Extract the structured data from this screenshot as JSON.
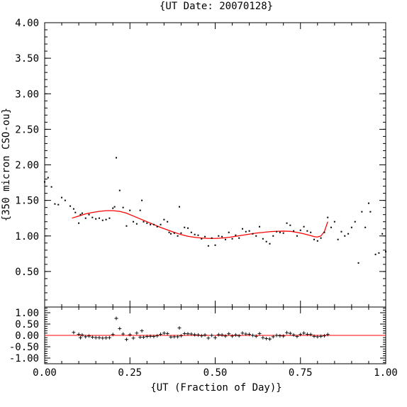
{
  "chart_data": [
    {
      "type": "scatter",
      "title": "{UT Date: 20070128}",
      "xlabel": "",
      "ylabel": "{350 micron CSO-ou}",
      "xlim": [
        0.0,
        1.0
      ],
      "ylim": [
        0.0,
        4.0
      ],
      "yticks": [
        "4.00",
        "3.50",
        "3.00",
        "2.50",
        "2.00",
        "1.50",
        "1.00",
        "0.50"
      ],
      "yticks_values": [
        4.0,
        3.5,
        3.0,
        2.5,
        2.0,
        1.5,
        1.0,
        0.5
      ],
      "series": [
        {
          "points": [
            [
              0.0,
              1.76
            ],
            [
              0.01,
              1.82
            ],
            [
              0.02,
              1.69
            ],
            [
              0.03,
              1.45
            ],
            [
              0.04,
              1.44
            ],
            [
              0.05,
              1.54
            ],
            [
              0.06,
              1.5
            ],
            [
              0.075,
              1.42
            ],
            [
              0.085,
              1.38
            ],
            [
              0.09,
              1.33
            ],
            [
              0.1,
              1.18
            ],
            [
              0.105,
              1.3
            ],
            [
              0.11,
              1.32
            ],
            [
              0.12,
              1.25
            ],
            [
              0.13,
              1.3
            ],
            [
              0.14,
              1.26
            ],
            [
              0.15,
              1.24
            ],
            [
              0.16,
              1.25
            ],
            [
              0.17,
              1.22
            ],
            [
              0.18,
              1.23
            ],
            [
              0.19,
              1.25
            ],
            [
              0.2,
              1.39
            ],
            [
              0.205,
              1.41
            ],
            [
              0.21,
              2.1
            ],
            [
              0.22,
              1.64
            ],
            [
              0.23,
              1.4
            ],
            [
              0.24,
              1.14
            ],
            [
              0.25,
              1.36
            ],
            [
              0.26,
              1.2
            ],
            [
              0.27,
              1.17
            ],
            [
              0.28,
              1.36
            ],
            [
              0.285,
              1.5
            ],
            [
              0.29,
              1.2
            ],
            [
              0.3,
              1.18
            ],
            [
              0.31,
              1.16
            ],
            [
              0.32,
              1.16
            ],
            [
              0.33,
              1.13
            ],
            [
              0.34,
              1.16
            ],
            [
              0.35,
              1.23
            ],
            [
              0.36,
              1.2
            ],
            [
              0.365,
              1.05
            ],
            [
              0.37,
              1.03
            ],
            [
              0.38,
              1.04
            ],
            [
              0.39,
              1.0
            ],
            [
              0.395,
              1.41
            ],
            [
              0.4,
              1.04
            ],
            [
              0.41,
              1.12
            ],
            [
              0.42,
              1.11
            ],
            [
              0.43,
              1.05
            ],
            [
              0.44,
              1.02
            ],
            [
              0.45,
              1.01
            ],
            [
              0.46,
              0.96
            ],
            [
              0.47,
              0.99
            ],
            [
              0.48,
              0.86
            ],
            [
              0.49,
              0.97
            ],
            [
              0.5,
              0.87
            ],
            [
              0.51,
              1.0
            ],
            [
              0.52,
              0.99
            ],
            [
              0.53,
              0.95
            ],
            [
              0.54,
              1.05
            ],
            [
              0.55,
              0.96
            ],
            [
              0.56,
              1.01
            ],
            [
              0.57,
              0.97
            ],
            [
              0.58,
              1.1
            ],
            [
              0.59,
              1.06
            ],
            [
              0.6,
              1.07
            ],
            [
              0.61,
              1.03
            ],
            [
              0.62,
              1.0
            ],
            [
              0.63,
              1.13
            ],
            [
              0.64,
              0.96
            ],
            [
              0.65,
              0.92
            ],
            [
              0.66,
              0.89
            ],
            [
              0.67,
              1.0
            ],
            [
              0.68,
              1.06
            ],
            [
              0.69,
              1.05
            ],
            [
              0.7,
              1.04
            ],
            [
              0.71,
              1.18
            ],
            [
              0.72,
              1.15
            ],
            [
              0.73,
              1.07
            ],
            [
              0.74,
              1.0
            ],
            [
              0.75,
              1.08
            ],
            [
              0.76,
              1.13
            ],
            [
              0.77,
              1.07
            ],
            [
              0.78,
              1.05
            ],
            [
              0.79,
              0.95
            ],
            [
              0.8,
              0.93
            ],
            [
              0.81,
              0.97
            ],
            [
              0.82,
              1.05
            ],
            [
              0.83,
              1.26
            ],
            [
              0.84,
              1.12
            ],
            [
              0.85,
              1.2
            ],
            [
              0.86,
              0.95
            ],
            [
              0.87,
              1.06
            ],
            [
              0.88,
              1.0
            ],
            [
              0.89,
              1.03
            ],
            [
              0.9,
              1.12
            ],
            [
              0.91,
              1.2
            ],
            [
              0.92,
              0.62
            ],
            [
              0.93,
              1.34
            ],
            [
              0.94,
              1.12
            ],
            [
              0.95,
              1.46
            ],
            [
              0.955,
              1.34
            ],
            [
              0.97,
              0.74
            ],
            [
              0.98,
              0.76
            ],
            [
              0.99,
              1.03
            ],
            [
              1.0,
              0.78
            ]
          ]
        }
      ],
      "fit": {
        "color": "#ff0000",
        "points": [
          [
            0.08,
            1.25
          ],
          [
            0.1,
            1.28
          ],
          [
            0.12,
            1.31
          ],
          [
            0.14,
            1.33
          ],
          [
            0.16,
            1.345
          ],
          [
            0.18,
            1.355
          ],
          [
            0.2,
            1.355
          ],
          [
            0.22,
            1.345
          ],
          [
            0.24,
            1.32
          ],
          [
            0.26,
            1.28
          ],
          [
            0.28,
            1.24
          ],
          [
            0.3,
            1.2
          ],
          [
            0.32,
            1.16
          ],
          [
            0.34,
            1.12
          ],
          [
            0.36,
            1.085
          ],
          [
            0.38,
            1.05
          ],
          [
            0.4,
            1.02
          ],
          [
            0.42,
            0.995
          ],
          [
            0.44,
            0.98
          ],
          [
            0.46,
            0.97
          ],
          [
            0.48,
            0.965
          ],
          [
            0.5,
            0.965
          ],
          [
            0.52,
            0.97
          ],
          [
            0.54,
            0.98
          ],
          [
            0.56,
            0.995
          ],
          [
            0.58,
            1.01
          ],
          [
            0.6,
            1.025
          ],
          [
            0.62,
            1.04
          ],
          [
            0.64,
            1.05
          ],
          [
            0.66,
            1.06
          ],
          [
            0.68,
            1.065
          ],
          [
            0.7,
            1.068
          ],
          [
            0.72,
            1.065
          ],
          [
            0.74,
            1.05
          ],
          [
            0.76,
            1.03
          ],
          [
            0.78,
            1.005
          ],
          [
            0.79,
            0.99
          ],
          [
            0.8,
            0.985
          ],
          [
            0.81,
            1.0
          ],
          [
            0.82,
            1.06
          ],
          [
            0.83,
            1.2
          ]
        ]
      }
    },
    {
      "type": "scatter",
      "xlabel": "{UT (Fraction of Day)}",
      "ylabel": "",
      "xlim": [
        0.0,
        1.0
      ],
      "ylim": [
        -1.25,
        1.25
      ],
      "yticks": [
        "1.00",
        "0.50",
        "0.00",
        "-0.50",
        "-1.00"
      ],
      "yticks_values": [
        1.0,
        0.5,
        0.0,
        -0.5,
        -1.0
      ],
      "xticks": [
        "0.00",
        "0.25",
        "0.50",
        "0.75",
        "1.00"
      ],
      "xticks_values": [
        0.0,
        0.25,
        0.5,
        0.75,
        1.0
      ],
      "zero_line_color": "#ff0000",
      "series": [
        {
          "points": [
            [
              0.085,
              0.13
            ],
            [
              0.1,
              0.05
            ],
            [
              0.105,
              -0.1
            ],
            [
              0.11,
              0.02
            ],
            [
              0.12,
              -0.06
            ],
            [
              0.13,
              -0.03
            ],
            [
              0.14,
              -0.08
            ],
            [
              0.15,
              -0.1
            ],
            [
              0.16,
              -0.1
            ],
            [
              0.17,
              -0.12
            ],
            [
              0.18,
              -0.11
            ],
            [
              0.19,
              -0.1
            ],
            [
              0.2,
              0.04
            ],
            [
              0.21,
              0.75
            ],
            [
              0.22,
              0.3
            ],
            [
              0.23,
              0.06
            ],
            [
              0.24,
              -0.18
            ],
            [
              0.25,
              0.03
            ],
            [
              0.26,
              -0.12
            ],
            [
              0.27,
              0.1
            ],
            [
              0.28,
              -0.08
            ],
            [
              0.285,
              0.2
            ],
            [
              0.29,
              -0.08
            ],
            [
              0.3,
              -0.05
            ],
            [
              0.31,
              -0.04
            ],
            [
              0.32,
              -0.05
            ],
            [
              0.33,
              -0.02
            ],
            [
              0.34,
              0.05
            ],
            [
              0.35,
              0.1
            ],
            [
              0.36,
              0.08
            ],
            [
              0.37,
              -0.07
            ],
            [
              0.38,
              -0.06
            ],
            [
              0.39,
              -0.06
            ],
            [
              0.395,
              0.33
            ],
            [
              0.4,
              -0.02
            ],
            [
              0.41,
              0.08
            ],
            [
              0.42,
              0.07
            ],
            [
              0.43,
              0.06
            ],
            [
              0.44,
              0.03
            ],
            [
              0.45,
              0.02
            ],
            [
              0.46,
              -0.02
            ],
            [
              0.47,
              0.02
            ],
            [
              0.48,
              -0.12
            ],
            [
              0.49,
              0.0
            ],
            [
              0.5,
              -0.1
            ],
            [
              0.51,
              0.03
            ],
            [
              0.52,
              0.02
            ],
            [
              0.53,
              -0.03
            ],
            [
              0.54,
              0.07
            ],
            [
              0.55,
              -0.03
            ],
            [
              0.56,
              0.02
            ],
            [
              0.57,
              -0.02
            ],
            [
              0.58,
              0.1
            ],
            [
              0.59,
              0.06
            ],
            [
              0.6,
              0.05
            ],
            [
              0.61,
              0.0
            ],
            [
              0.62,
              -0.04
            ],
            [
              0.63,
              0.08
            ],
            [
              0.64,
              -0.1
            ],
            [
              0.65,
              -0.14
            ],
            [
              0.66,
              -0.16
            ],
            [
              0.67,
              -0.06
            ],
            [
              0.68,
              0.0
            ],
            [
              0.69,
              -0.02
            ],
            [
              0.7,
              -0.03
            ],
            [
              0.71,
              0.12
            ],
            [
              0.72,
              0.09
            ],
            [
              0.73,
              0.02
            ],
            [
              0.74,
              -0.05
            ],
            [
              0.75,
              0.04
            ],
            [
              0.76,
              0.1
            ],
            [
              0.77,
              0.05
            ],
            [
              0.78,
              0.04
            ],
            [
              0.79,
              -0.04
            ],
            [
              0.8,
              -0.06
            ],
            [
              0.81,
              -0.04
            ],
            [
              0.82,
              -0.02
            ],
            [
              0.83,
              0.04
            ]
          ]
        }
      ]
    }
  ]
}
